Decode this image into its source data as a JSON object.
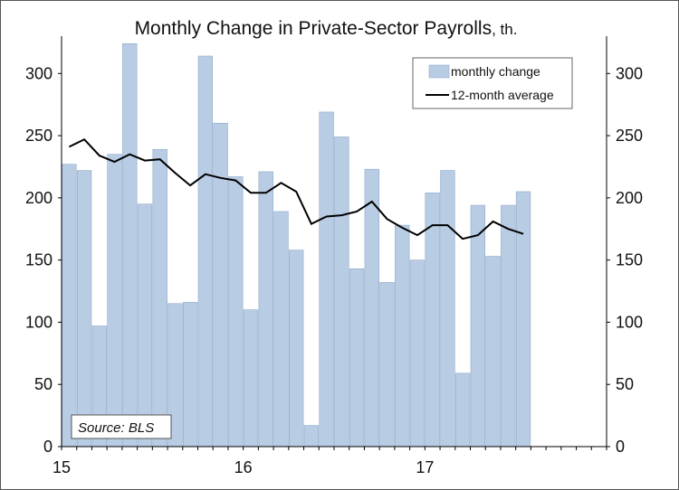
{
  "chart_data": {
    "type": "bar",
    "title": "Monthly Change in Private-Sector Payrolls",
    "title_unit": "th.",
    "xlabel": "",
    "ylabel": "",
    "ylim": [
      0,
      330
    ],
    "y_ticks": [
      0,
      50,
      100,
      150,
      200,
      250,
      300
    ],
    "x_tick_labels": [
      {
        "label": "15",
        "index": 0
      },
      {
        "label": "16",
        "index": 12
      },
      {
        "label": "17",
        "index": 24
      }
    ],
    "n_slots": 36,
    "categories": [
      "2015-01",
      "2015-02",
      "2015-03",
      "2015-04",
      "2015-05",
      "2015-06",
      "2015-07",
      "2015-08",
      "2015-09",
      "2015-10",
      "2015-11",
      "2015-12",
      "2016-01",
      "2016-02",
      "2016-03",
      "2016-04",
      "2016-05",
      "2016-06",
      "2016-07",
      "2016-08",
      "2016-09",
      "2016-10",
      "2016-11",
      "2016-12",
      "2017-01",
      "2017-02",
      "2017-03",
      "2017-04",
      "2017-05",
      "2017-06",
      "2017-07"
    ],
    "series": [
      {
        "name": "monthly change",
        "type": "bar",
        "color": "#b8cce4",
        "values": [
          227,
          222,
          97,
          235,
          324,
          195,
          239,
          115,
          116,
          314,
          260,
          217,
          110,
          221,
          189,
          158,
          17,
          269,
          249,
          143,
          223,
          132,
          178,
          150,
          204,
          222,
          59,
          194,
          153,
          194,
          205
        ]
      },
      {
        "name": "12-month average",
        "type": "line",
        "color": "#000000",
        "values": [
          241,
          247,
          234,
          229,
          235,
          230,
          231,
          220,
          210,
          219,
          216,
          214,
          204,
          204,
          212,
          205,
          179,
          185,
          186,
          189,
          197,
          183,
          176,
          170,
          178,
          178,
          167,
          170,
          181,
          175,
          171
        ]
      }
    ],
    "legend_position": "top-right",
    "grid": false,
    "source": "Source: BLS"
  }
}
